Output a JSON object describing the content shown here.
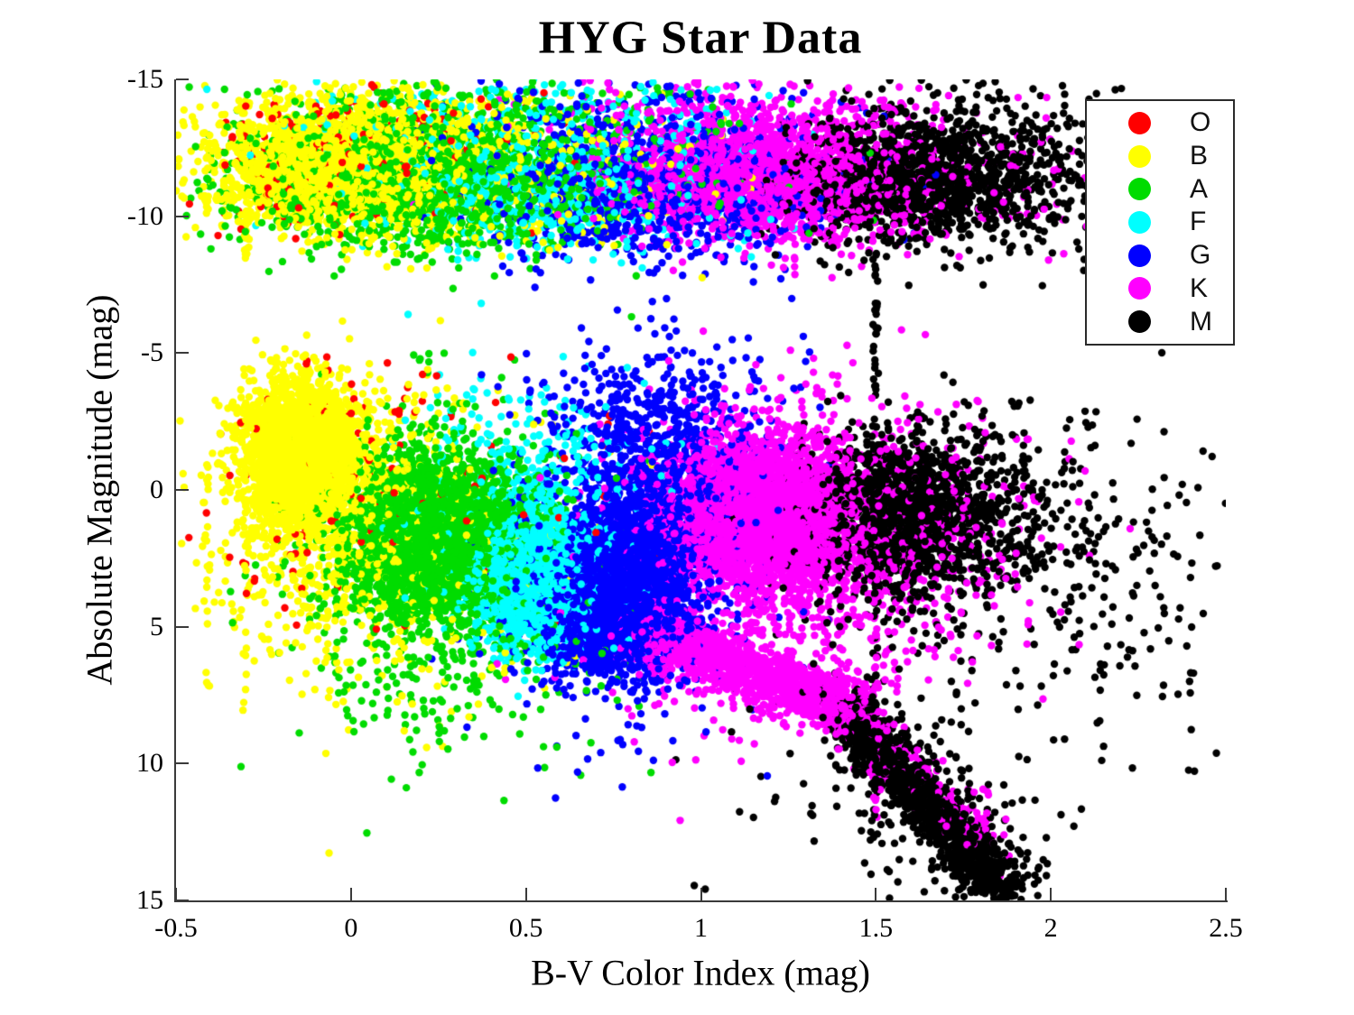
{
  "title": "HYG Star Data",
  "chart_data": {
    "type": "scatter",
    "title": "HYG Star Data",
    "xlabel": "B-V Color Index (mag)",
    "ylabel": "Absolute Magnitude (mag)",
    "xlim": [
      -0.5,
      2.5
    ],
    "ylim": [
      -15,
      15
    ],
    "y_axis_direction": "inverted (magnitude increases downward)",
    "grid": false,
    "box": false,
    "tick_direction": "in",
    "x_ticks": [
      -0.5,
      0,
      0.5,
      1,
      1.5,
      2,
      2.5
    ],
    "x_tick_labels": [
      "-0.5",
      "0",
      "0.5",
      "1",
      "1.5",
      "2",
      "2.5"
    ],
    "y_ticks": [
      -15,
      -10,
      -5,
      0,
      5,
      10,
      15
    ],
    "y_tick_labels": [
      "-15",
      "-10",
      "-5",
      "0",
      "5",
      "10",
      "15"
    ],
    "marker_radius_px": 4.2,
    "legend": {
      "position": "top-right",
      "entries": [
        {
          "label": "O",
          "class": "O"
        },
        {
          "label": "B",
          "class": "B"
        },
        {
          "label": "A",
          "class": "A"
        },
        {
          "label": "F",
          "class": "F"
        },
        {
          "label": "G",
          "class": "G"
        },
        {
          "label": "K",
          "class": "K"
        },
        {
          "label": "M",
          "class": "M"
        }
      ]
    },
    "description": "Hertzsprung-Russell style diagram of ~35000 HYG catalog stars: an upper horizontal band near mag -11.5 spanning all colors, a main cloud (main sequence diagonal from B stars at B-V -0.15/mag -1.5 down to K dwarfs at B-V 1.4/mag 8, plus K/M giant clump near mag 0-1), and a dense black M-dwarf lower main sequence descending to (1.9, 15). Vertical artifact strips at B-V = -0.41, -0.30 and 1.50.",
    "classes": {
      "O": {
        "color": "#ff0000",
        "clusters": [
          {
            "kind": "gauss",
            "n": 160,
            "cx": 0.05,
            "cy": -12.6,
            "sx": 0.2,
            "sy": 0.9
          },
          {
            "kind": "gauss",
            "n": 70,
            "cx": 0.0,
            "cy": -11.0,
            "sx": 0.25,
            "sy": 1.2
          },
          {
            "kind": "gauss",
            "n": 90,
            "cx": -0.05,
            "cy": -0.5,
            "sx": 0.15,
            "sy": 2.2
          },
          {
            "kind": "gauss",
            "n": 55,
            "cx": 0.35,
            "cy": 0.5,
            "sx": 0.3,
            "sy": 2.5
          },
          {
            "kind": "strip",
            "n": 3,
            "x": -0.3,
            "y0": -1,
            "y1": 6
          }
        ]
      },
      "B": {
        "color": "#ffff00",
        "clusters": [
          {
            "kind": "gauss",
            "n": 2000,
            "cx": -0.03,
            "cy": -11.7,
            "sx": 0.16,
            "sy": 1.0
          },
          {
            "kind": "gauss",
            "n": 700,
            "cx": 0.25,
            "cy": -11.4,
            "sx": 0.35,
            "sy": 1.3
          },
          {
            "kind": "gauss",
            "n": 250,
            "cx": 0.05,
            "cy": -13.8,
            "sx": 0.25,
            "sy": 0.8
          },
          {
            "kind": "gauss",
            "n": 2400,
            "cx": -0.14,
            "cy": -1.5,
            "sx": 0.075,
            "sy": 1.2
          },
          {
            "kind": "gauss",
            "n": 800,
            "cx": -0.05,
            "cy": 0.3,
            "sx": 0.15,
            "sy": 2.0
          },
          {
            "kind": "gauss",
            "n": 500,
            "cx": 0.1,
            "cy": 2.5,
            "sx": 0.25,
            "sy": 2.8
          },
          {
            "kind": "strip",
            "n": 28,
            "x": -0.3,
            "y0": -4.5,
            "y1": 8
          },
          {
            "kind": "strip",
            "n": 25,
            "x": -0.3,
            "y0": -14,
            "y1": -8
          },
          {
            "kind": "strip",
            "n": 20,
            "x": -0.41,
            "y0": -1,
            "y1": 8
          },
          {
            "kind": "strip",
            "n": 8,
            "x": -0.41,
            "y0": -13,
            "y1": -9
          }
        ]
      },
      "A": {
        "color": "#00dc00",
        "clusters": [
          {
            "kind": "gauss",
            "n": 1500,
            "cx": 0.18,
            "cy": -11.2,
            "sx": 0.24,
            "sy": 1.1
          },
          {
            "kind": "gauss",
            "n": 450,
            "cx": 0.5,
            "cy": -11.3,
            "sx": 0.35,
            "sy": 1.3
          },
          {
            "kind": "gauss",
            "n": 200,
            "cx": 0.3,
            "cy": -13.9,
            "sx": 0.35,
            "sy": 0.8
          },
          {
            "kind": "gauss",
            "n": 2600,
            "cx": 0.24,
            "cy": 1.7,
            "sx": 0.12,
            "sy": 1.4
          },
          {
            "kind": "gauss",
            "n": 800,
            "cx": 0.28,
            "cy": 2.5,
            "sx": 0.2,
            "sy": 2.6
          },
          {
            "kind": "gauss",
            "n": 80,
            "cx": 0.3,
            "cy": 7.5,
            "sx": 0.25,
            "sy": 1.5
          }
        ]
      },
      "F": {
        "color": "#00ffff",
        "clusters": [
          {
            "kind": "gauss",
            "n": 700,
            "cx": 0.55,
            "cy": -11.1,
            "sx": 0.25,
            "sy": 1.2
          },
          {
            "kind": "gauss",
            "n": 200,
            "cx": 0.5,
            "cy": -13.6,
            "sx": 0.3,
            "sy": 0.9
          },
          {
            "kind": "gauss",
            "n": 1900,
            "cx": 0.52,
            "cy": 3.3,
            "sx": 0.085,
            "sy": 1.15
          },
          {
            "kind": "gauss",
            "n": 450,
            "cx": 0.5,
            "cy": 0.5,
            "sx": 0.18,
            "sy": 2.2
          }
        ]
      },
      "G": {
        "color": "#0000ff",
        "clusters": [
          {
            "kind": "gauss",
            "n": 1000,
            "cx": 0.85,
            "cy": -10.9,
            "sx": 0.24,
            "sy": 1.2
          },
          {
            "kind": "gauss",
            "n": 180,
            "cx": 0.75,
            "cy": -13.4,
            "sx": 0.3,
            "sy": 1.0
          },
          {
            "kind": "gauss",
            "n": 2800,
            "cx": 0.76,
            "cy": 4.0,
            "sx": 0.105,
            "sy": 1.3
          },
          {
            "kind": "gauss",
            "n": 800,
            "cx": 0.88,
            "cy": 0.8,
            "sx": 0.13,
            "sy": 1.8
          },
          {
            "kind": "gauss",
            "n": 450,
            "cx": 0.85,
            "cy": -2.2,
            "sx": 0.17,
            "sy": 1.6
          },
          {
            "kind": "gauss",
            "n": 350,
            "cx": 0.75,
            "cy": 3.5,
            "sx": 0.22,
            "sy": 2.8
          }
        ]
      },
      "K": {
        "color": "#ff00ff",
        "clusters": [
          {
            "kind": "gauss",
            "n": 1700,
            "cx": 1.17,
            "cy": -11.4,
            "sx": 0.21,
            "sy": 1.0
          },
          {
            "kind": "gauss",
            "n": 500,
            "cx": 1.32,
            "cy": -11.2,
            "sx": 0.33,
            "sy": 1.4
          },
          {
            "kind": "gauss",
            "n": 180,
            "cx": 1.15,
            "cy": -13.8,
            "sx": 0.28,
            "sy": 0.7
          },
          {
            "kind": "gauss",
            "n": 3000,
            "cx": 1.17,
            "cy": 0.9,
            "sx": 0.125,
            "sy": 1.3
          },
          {
            "kind": "gauss",
            "n": 700,
            "cx": 1.22,
            "cy": 0.8,
            "sx": 0.2,
            "sy": 2.2
          },
          {
            "kind": "line",
            "n": 1450,
            "x0": 0.82,
            "y0": 5.0,
            "x1": 1.46,
            "y1": 8.2,
            "sx": 0.04,
            "sy": 0.55
          },
          {
            "kind": "gauss",
            "n": 500,
            "cx": 1.25,
            "cy": 3.5,
            "sx": 0.3,
            "sy": 3.0
          },
          {
            "kind": "gauss",
            "n": 250,
            "cx": 1.62,
            "cy": 1.0,
            "sx": 0.18,
            "sy": 2.0
          },
          {
            "kind": "line",
            "n": 170,
            "x0": 1.48,
            "y0": 9.0,
            "x1": 1.83,
            "y1": 13.0,
            "sx": 0.035,
            "sy": 0.6
          },
          {
            "kind": "strip",
            "n": 30,
            "x": 1.5,
            "y0": 3,
            "y1": 12
          }
        ]
      },
      "M": {
        "color": "#000000",
        "clusters": [
          {
            "kind": "gauss",
            "n": 1000,
            "cx": 1.58,
            "cy": -11.3,
            "sx": 0.17,
            "sy": 1.0
          },
          {
            "kind": "gauss",
            "n": 450,
            "cx": 1.76,
            "cy": -11.3,
            "sx": 0.22,
            "sy": 1.3
          },
          {
            "kind": "gauss",
            "n": 150,
            "cx": 1.8,
            "cy": -13.2,
            "sx": 0.25,
            "sy": 1.0
          },
          {
            "kind": "gauss",
            "n": 80,
            "cx": 2.02,
            "cy": -11.5,
            "sx": 0.18,
            "sy": 1.5
          },
          {
            "kind": "strip",
            "n": 30,
            "x": 1.5,
            "y0": -9,
            "y1": -3
          },
          {
            "kind": "gauss",
            "n": 1300,
            "cx": 1.58,
            "cy": 0.7,
            "sx": 0.14,
            "sy": 1.3
          },
          {
            "kind": "gauss",
            "n": 550,
            "cx": 1.75,
            "cy": 1.5,
            "sx": 0.25,
            "sy": 2.3
          },
          {
            "kind": "gauss",
            "n": 70,
            "cx": 2.25,
            "cy": 4.5,
            "sx": 0.13,
            "sy": 3.0
          },
          {
            "kind": "line",
            "n": 1200,
            "x0": 1.43,
            "y0": 8.3,
            "x1": 1.87,
            "y1": 14.7,
            "sx": 0.025,
            "sy": 0.45
          },
          {
            "kind": "line",
            "n": 420,
            "x0": 1.4,
            "y0": 8.0,
            "x1": 1.9,
            "y1": 14.5,
            "sx": 0.08,
            "sy": 1.0
          },
          {
            "kind": "gauss",
            "n": 90,
            "cx": 1.6,
            "cy": 10.5,
            "sx": 0.28,
            "sy": 2.2
          },
          {
            "kind": "strip",
            "n": 35,
            "x": 1.5,
            "y0": 2,
            "y1": 12
          },
          {
            "kind": "strip",
            "n": 8,
            "x": 2.4,
            "y0": 2,
            "y1": 11
          },
          {
            "kind": "gauss",
            "n": 2,
            "cx": 1.0,
            "cy": 14.6,
            "sx": 0.02,
            "sy": 0.3
          }
        ]
      }
    }
  }
}
